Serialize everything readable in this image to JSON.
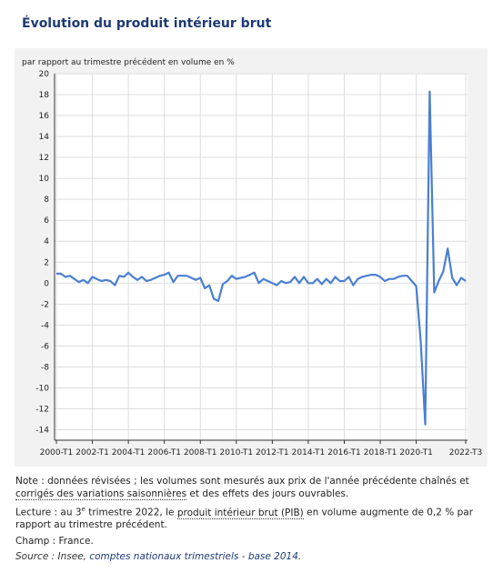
{
  "title": "Évolution du produit intérieur brut",
  "chart_data": {
    "type": "line",
    "title": "Évolution du produit intérieur brut",
    "ylabel": "par rapport au trimestre précédent en volume en %",
    "ylim": [
      -15,
      20
    ],
    "yticks": [
      20,
      18,
      16,
      14,
      12,
      10,
      8,
      6,
      4,
      2,
      0,
      -2,
      -4,
      -6,
      -8,
      -10,
      -12,
      -14
    ],
    "xtick_labels": [
      "2000-T1",
      "2002-T1",
      "2004-T1",
      "2006-T1",
      "2008-T1",
      "2010-T1",
      "2012-T1",
      "2014-T1",
      "2016-T1",
      "2018-T1",
      "2020-T1",
      "2022-T3"
    ],
    "grid": true,
    "color": "#4a7fd1",
    "x_start": "2000-T1",
    "x_end": "2022-T3",
    "values": [
      0.9,
      0.9,
      0.6,
      0.7,
      0.4,
      0.1,
      0.3,
      0.0,
      0.6,
      0.4,
      0.2,
      0.3,
      0.2,
      -0.2,
      0.7,
      0.6,
      1.0,
      0.6,
      0.3,
      0.6,
      0.2,
      0.3,
      0.5,
      0.7,
      0.8,
      1.0,
      0.1,
      0.7,
      0.7,
      0.7,
      0.5,
      0.3,
      0.5,
      -0.5,
      -0.2,
      -1.5,
      -1.7,
      -0.1,
      0.2,
      0.7,
      0.4,
      0.5,
      0.6,
      0.8,
      1.0,
      0.0,
      0.4,
      0.2,
      0.0,
      -0.2,
      0.2,
      0.0,
      0.1,
      0.6,
      0.0,
      0.6,
      0.0,
      0.0,
      0.4,
      -0.1,
      0.4,
      0.0,
      0.6,
      0.2,
      0.2,
      0.6,
      -0.2,
      0.4,
      0.6,
      0.7,
      0.8,
      0.8,
      0.6,
      0.2,
      0.4,
      0.4,
      0.6,
      0.7,
      0.7,
      0.2,
      -0.3,
      -5.5,
      -13.5,
      18.3,
      -0.9,
      0.2,
      1.1,
      3.3,
      0.5,
      -0.2,
      0.5,
      0.2
    ]
  },
  "notes": {
    "note_text_1": "Note : données révisées ; les volumes sont mesurés aux prix de l'année précédente chaînés et ",
    "note_link_1": "corrigés des variations saisonnières",
    "note_text_2": " et des effets des jours ouvrables.",
    "lecture_text_1": "Lecture : au 3",
    "lecture_sup": "e",
    "lecture_text_2": " trimestre 2022, le ",
    "lecture_link": "produit intérieur brut (PIB)",
    "lecture_text_3": " en volume augmente de 0,2 % par rapport au trimestre précédent.",
    "champ": "Champ : France.",
    "source_prefix": "Source : Insee, ",
    "source_link": "comptes nationaux trimestriels - base 2014",
    "source_suffix": "."
  }
}
